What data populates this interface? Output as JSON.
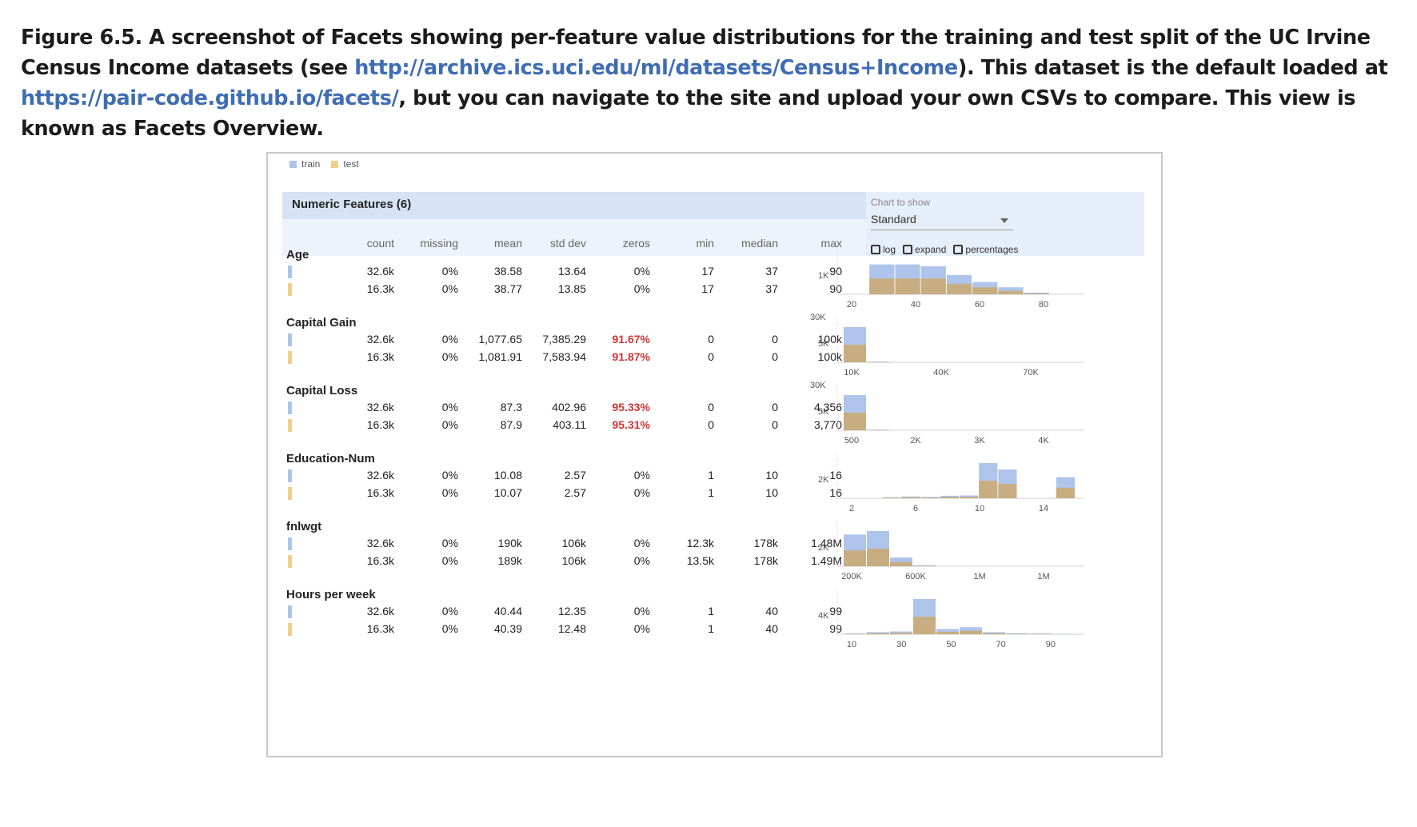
{
  "caption": {
    "part1": "Figure 6.5. A screenshot of Facets showing per-feature value distributions for the training and test split of the UC Irvine Census Income datasets (see ",
    "link1": "http://archive.ics.uci.edu/ml/datasets/Census+Income",
    "part2": "). This dataset is the default loaded at ",
    "link2": "https://pair-code.github.io/facets/",
    "part3": ", but you can navigate to the site and upload your own CSVs to compare. This view is known as Facets Overview."
  },
  "legend": {
    "train": "train",
    "test": "test"
  },
  "colors": {
    "train": "#aec4ea",
    "test": "#f1cf8a",
    "overlap": "#c8ad82",
    "alert": "#d23434"
  },
  "section_title": "Numeric Features (6)",
  "chart_controls": {
    "label": "Chart to show",
    "selected": "Standard",
    "options": [
      "log",
      "expand",
      "percentages"
    ]
  },
  "columns": [
    "count",
    "missing",
    "mean",
    "std dev",
    "zeros",
    "min",
    "median",
    "max"
  ],
  "features": [
    {
      "name": "Age",
      "rows": [
        {
          "split": "train",
          "count": "32.6k",
          "missing": "0%",
          "mean": "38.58",
          "std": "13.64",
          "zeros": "0%",
          "zeros_alert": false,
          "min": "17",
          "median": "37",
          "max": "90"
        },
        {
          "split": "test",
          "count": "16.3k",
          "missing": "0%",
          "mean": "38.77",
          "std": "13.85",
          "zeros": "0%",
          "zeros_alert": false,
          "min": "17",
          "median": "37",
          "max": "90"
        }
      ],
      "chart": {
        "ytick": "1K",
        "xticks": [
          "20",
          "40",
          "60",
          "80"
        ],
        "train": [
          0.0,
          0.85,
          0.85,
          0.8,
          0.55,
          0.35,
          0.2,
          0.05,
          0.0
        ],
        "test": [
          0.0,
          0.45,
          0.45,
          0.45,
          0.3,
          0.2,
          0.1,
          0.02,
          0.0
        ]
      }
    },
    {
      "name": "Capital Gain",
      "rows": [
        {
          "split": "train",
          "count": "32.6k",
          "missing": "0%",
          "mean": "1,077.65",
          "std": "7,385.29",
          "zeros": "91.67%",
          "zeros_alert": true,
          "min": "0",
          "median": "0",
          "max": "100k"
        },
        {
          "split": "test",
          "count": "16.3k",
          "missing": "0%",
          "mean": "1,081.91",
          "std": "7,583.94",
          "zeros": "91.87%",
          "zeros_alert": true,
          "min": "0",
          "median": "0",
          "max": "100k"
        }
      ],
      "chart": {
        "ytick_top": "30K",
        "ytick": "5K",
        "xticks": [
          "10K",
          "40K",
          "70K"
        ],
        "train": [
          1.0,
          0.02,
          0.0,
          0.0,
          0.0,
          0.0,
          0.0,
          0.0,
          0.0,
          0.0
        ],
        "test": [
          0.5,
          0.01,
          0.0,
          0.0,
          0.0,
          0.0,
          0.0,
          0.0,
          0.0,
          0.0
        ]
      }
    },
    {
      "name": "Capital Loss",
      "rows": [
        {
          "split": "train",
          "count": "32.6k",
          "missing": "0%",
          "mean": "87.3",
          "std": "402.96",
          "zeros": "95.33%",
          "zeros_alert": true,
          "min": "0",
          "median": "0",
          "max": "4,356"
        },
        {
          "split": "test",
          "count": "16.3k",
          "missing": "0%",
          "mean": "87.9",
          "std": "403.11",
          "zeros": "95.31%",
          "zeros_alert": true,
          "min": "0",
          "median": "0",
          "max": "3,770"
        }
      ],
      "chart": {
        "ytick_top": "30K",
        "ytick": "5K",
        "xticks": [
          "500",
          "2K",
          "3K",
          "4K"
        ],
        "train": [
          1.0,
          0.02,
          0.0,
          0.0,
          0.0,
          0.0,
          0.0,
          0.0,
          0.0,
          0.0
        ],
        "test": [
          0.5,
          0.01,
          0.0,
          0.0,
          0.0,
          0.0,
          0.0,
          0.0,
          0.0,
          0.0
        ]
      }
    },
    {
      "name": "Education-Num",
      "rows": [
        {
          "split": "train",
          "count": "32.6k",
          "missing": "0%",
          "mean": "10.08",
          "std": "2.57",
          "zeros": "0%",
          "zeros_alert": false,
          "min": "1",
          "median": "10",
          "max": "16"
        },
        {
          "split": "test",
          "count": "16.3k",
          "missing": "0%",
          "mean": "10.07",
          "std": "2.57",
          "zeros": "0%",
          "zeros_alert": false,
          "min": "1",
          "median": "10",
          "max": "16"
        }
      ],
      "chart": {
        "ytick": "2K",
        "xticks": [
          "2",
          "6",
          "10",
          "14"
        ],
        "train": [
          0.0,
          0.0,
          0.03,
          0.05,
          0.04,
          0.07,
          0.08,
          1.0,
          0.82,
          0.0,
          0.0,
          0.6
        ],
        "test": [
          0.0,
          0.0,
          0.02,
          0.03,
          0.02,
          0.04,
          0.04,
          0.5,
          0.41,
          0.0,
          0.0,
          0.3
        ]
      }
    },
    {
      "name": "fnlwgt",
      "rows": [
        {
          "split": "train",
          "count": "32.6k",
          "missing": "0%",
          "mean": "190k",
          "std": "106k",
          "zeros": "0%",
          "zeros_alert": false,
          "min": "12.3k",
          "median": "178k",
          "max": "1.48M"
        },
        {
          "split": "test",
          "count": "16.3k",
          "missing": "0%",
          "mean": "189k",
          "std": "106k",
          "zeros": "0%",
          "zeros_alert": false,
          "min": "13.5k",
          "median": "178k",
          "max": "1.49M"
        }
      ],
      "chart": {
        "ytick": "2K",
        "xticks": [
          "200K",
          "600K",
          "1M",
          "1M"
        ],
        "train": [
          0.9,
          1.0,
          0.25,
          0.03,
          0.0,
          0.0,
          0.0,
          0.0,
          0.0,
          0.0
        ],
        "test": [
          0.45,
          0.5,
          0.12,
          0.01,
          0.0,
          0.0,
          0.0,
          0.0,
          0.0,
          0.0
        ]
      }
    },
    {
      "name": "Hours per week",
      "rows": [
        {
          "split": "train",
          "count": "32.6k",
          "missing": "0%",
          "mean": "40.44",
          "std": "12.35",
          "zeros": "0%",
          "zeros_alert": false,
          "min": "1",
          "median": "40",
          "max": "99"
        },
        {
          "split": "test",
          "count": "16.3k",
          "missing": "0%",
          "mean": "40.39",
          "std": "12.48",
          "zeros": "0%",
          "zeros_alert": false,
          "min": "1",
          "median": "40",
          "max": "99"
        }
      ],
      "chart": {
        "ytick": "4K",
        "xticks": [
          "10",
          "30",
          "50",
          "70",
          "90"
        ],
        "train": [
          0.02,
          0.06,
          0.08,
          1.0,
          0.15,
          0.2,
          0.06,
          0.03,
          0.02,
          0.01
        ],
        "test": [
          0.01,
          0.03,
          0.04,
          0.5,
          0.07,
          0.1,
          0.03,
          0.01,
          0.01,
          0.0
        ]
      }
    }
  ]
}
